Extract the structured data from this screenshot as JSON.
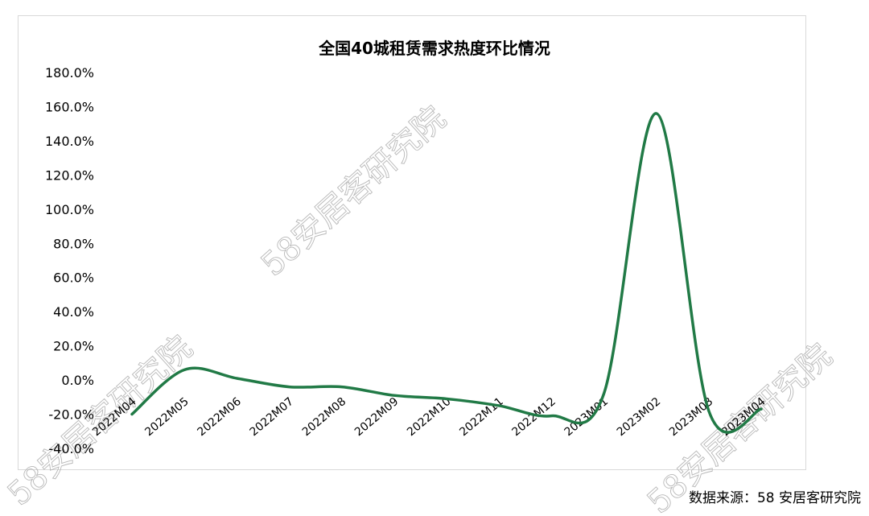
{
  "chart_data": {
    "type": "line",
    "title": "全国40城租赁需求热度环比情况",
    "categories": [
      "2022M04",
      "2022M05",
      "2022M06",
      "2022M07",
      "2022M08",
      "2022M09",
      "2022M10",
      "2022M11",
      "2022M12",
      "2023M01",
      "2023M02",
      "2023M03",
      "2023M04"
    ],
    "series": [
      {
        "values": [
          -20,
          6,
          1,
          -4,
          -4,
          -9,
          -11,
          -15,
          -21,
          -8,
          156,
          -18,
          -17
        ],
        "color": "#217a46"
      }
    ],
    "ylim": [
      -40,
      180
    ],
    "ytick_step": 20,
    "ytick_format": "percent_1dp",
    "grid": false,
    "legend": "none"
  },
  "source_text": "数据来源：58 安居客研究院",
  "watermark_text": "58安居客研究院",
  "colors": {
    "line": "#217a46",
    "frame": "#d9d9d9"
  }
}
